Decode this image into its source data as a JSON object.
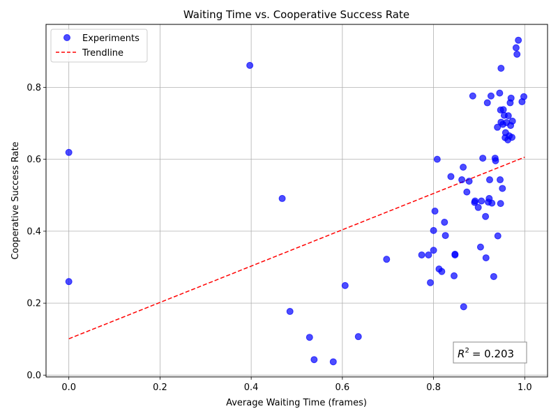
{
  "chart_data": {
    "type": "scatter",
    "title": "Waiting Time vs. Cooperative Success Rate",
    "xlabel": "Average Waiting Time (frames)",
    "ylabel": "Cooperative Success Rate",
    "xlim": [
      -0.05,
      1.05
    ],
    "ylim": [
      -0.005,
      0.975
    ],
    "xticks": [
      0.0,
      0.2,
      0.4,
      0.6,
      0.8,
      1.0
    ],
    "xtick_labels": [
      "0.0",
      "0.2",
      "0.4",
      "0.6",
      "0.8",
      "1.0"
    ],
    "yticks": [
      0.0,
      0.2,
      0.4,
      0.6,
      0.8
    ],
    "ytick_labels": [
      "0.0",
      "0.2",
      "0.4",
      "0.6",
      "0.8"
    ],
    "grid": true,
    "legend_position": "upper-left",
    "r2_text": "= 0.203",
    "r2_symbol": "R",
    "r2_superscript": "2",
    "series": [
      {
        "name": "Experiments",
        "kind": "points",
        "color": "#0000ff",
        "points": [
          [
            0.0,
            0.619
          ],
          [
            0.0,
            0.26
          ],
          [
            0.397,
            0.861
          ],
          [
            0.468,
            0.491
          ],
          [
            0.485,
            0.177
          ],
          [
            0.528,
            0.105
          ],
          [
            0.538,
            0.043
          ],
          [
            0.58,
            0.037
          ],
          [
            0.606,
            0.249
          ],
          [
            0.635,
            0.107
          ],
          [
            0.697,
            0.322
          ],
          [
            0.774,
            0.334
          ],
          [
            0.789,
            0.334
          ],
          [
            0.793,
            0.257
          ],
          [
            0.8,
            0.347
          ],
          [
            0.8,
            0.402
          ],
          [
            0.803,
            0.456
          ],
          [
            0.808,
            0.6
          ],
          [
            0.812,
            0.295
          ],
          [
            0.818,
            0.288
          ],
          [
            0.824,
            0.425
          ],
          [
            0.826,
            0.388
          ],
          [
            0.838,
            0.552
          ],
          [
            0.845,
            0.276
          ],
          [
            0.847,
            0.336
          ],
          [
            0.847,
            0.334
          ],
          [
            0.862,
            0.543
          ],
          [
            0.865,
            0.578
          ],
          [
            0.866,
            0.19
          ],
          [
            0.873,
            0.509
          ],
          [
            0.878,
            0.539
          ],
          [
            0.886,
            0.776
          ],
          [
            0.89,
            0.48
          ],
          [
            0.891,
            0.484
          ],
          [
            0.898,
            0.466
          ],
          [
            0.903,
            0.356
          ],
          [
            0.905,
            0.484
          ],
          [
            0.908,
            0.603
          ],
          [
            0.914,
            0.441
          ],
          [
            0.915,
            0.326
          ],
          [
            0.918,
            0.757
          ],
          [
            0.92,
            0.481
          ],
          [
            0.922,
            0.491
          ],
          [
            0.923,
            0.543
          ],
          [
            0.926,
            0.776
          ],
          [
            0.928,
            0.478
          ],
          [
            0.932,
            0.274
          ],
          [
            0.935,
            0.603
          ],
          [
            0.936,
            0.596
          ],
          [
            0.94,
            0.689
          ],
          [
            0.941,
            0.387
          ],
          [
            0.945,
            0.784
          ],
          [
            0.946,
            0.543
          ],
          [
            0.947,
            0.477
          ],
          [
            0.947,
            0.737
          ],
          [
            0.948,
            0.703
          ],
          [
            0.948,
            0.853
          ],
          [
            0.951,
            0.519
          ],
          [
            0.952,
            0.697
          ],
          [
            0.953,
            0.738
          ],
          [
            0.955,
            0.722
          ],
          [
            0.957,
            0.66
          ],
          [
            0.958,
            0.674
          ],
          [
            0.96,
            0.702
          ],
          [
            0.963,
            0.654
          ],
          [
            0.964,
            0.721
          ],
          [
            0.966,
            0.665
          ],
          [
            0.968,
            0.757
          ],
          [
            0.969,
            0.694
          ],
          [
            0.97,
            0.77
          ],
          [
            0.972,
            0.661
          ],
          [
            0.973,
            0.706
          ],
          [
            0.981,
            0.91
          ],
          [
            0.983,
            0.892
          ],
          [
            0.986,
            0.931
          ],
          [
            0.994,
            0.76
          ],
          [
            0.998,
            0.774
          ]
        ]
      },
      {
        "name": "Trendline",
        "kind": "line",
        "color": "#ff0000",
        "dash": "dashed",
        "x": [
          0.0,
          1.0
        ],
        "y": [
          0.101,
          0.606
        ]
      }
    ]
  }
}
